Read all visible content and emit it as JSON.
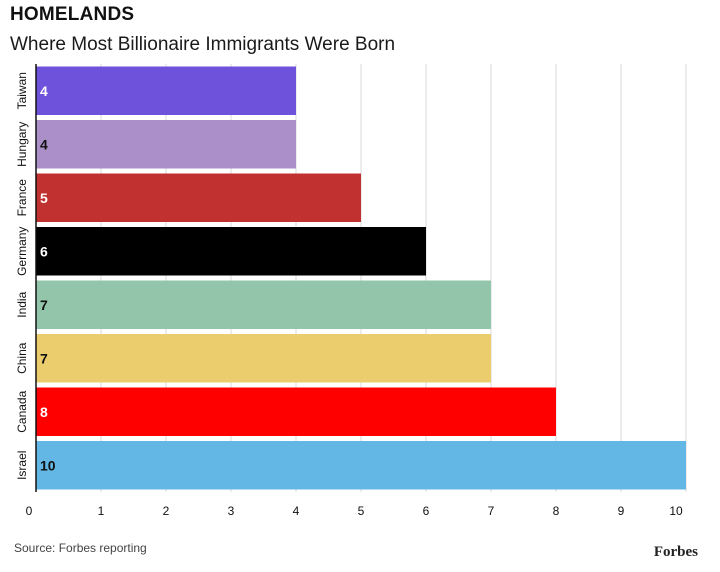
{
  "header": {
    "title": "HOMELANDS",
    "subtitle": "Where Most Billionaire Immigrants Were Born"
  },
  "footer": {
    "source": "Source: Forbes reporting",
    "brand": "Forbes"
  },
  "chart_data": {
    "type": "bar",
    "orientation": "horizontal",
    "title": "HOMELANDS",
    "subtitle": "Where Most Billionaire Immigrants Were Born",
    "categories": [
      "Taiwan",
      "Hungary",
      "France",
      "Germany",
      "India",
      "China",
      "Canada",
      "Israel"
    ],
    "values": [
      4,
      4,
      5,
      6,
      7,
      7,
      8,
      10
    ],
    "colors": [
      "#6F52DB",
      "#AB8FC8",
      "#C1312F",
      "#000000",
      "#92C5A9",
      "#ECCD6D",
      "#FF0000",
      "#62B7E4"
    ],
    "label_colors": [
      "#ffffff",
      "#111111",
      "#ffffff",
      "#ffffff",
      "#111111",
      "#111111",
      "#ffffff",
      "#111111"
    ],
    "xlim": [
      0,
      10
    ],
    "xticks": [
      0,
      1,
      2,
      3,
      4,
      5,
      6,
      7,
      8,
      9,
      10
    ],
    "grid": true,
    "xlabel": "",
    "ylabel": ""
  }
}
